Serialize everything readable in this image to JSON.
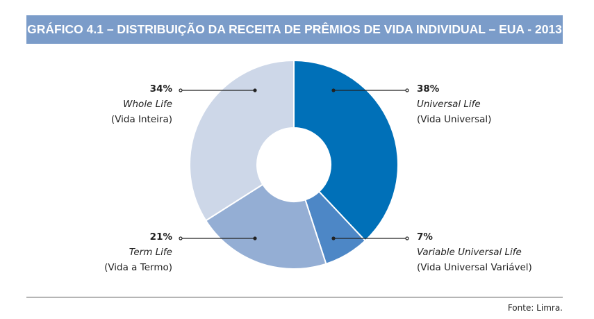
{
  "title": "GRÁFICO 4.1 – DISTRIBUIÇÃO DA RECEITA DE PRÊMIOS DE VIDA INDIVIDUAL – EUA - 2013",
  "source": "Fonte: Limra.",
  "chart_data": {
    "type": "pie",
    "donut": true,
    "title": "GRÁFICO 4.1 – DISTRIBUIÇÃO DA RECEITA DE PRÊMIOS DE VIDA INDIVIDUAL – EUA - 2013",
    "slices": [
      {
        "pct_label": "38%",
        "name": "Universal Life",
        "translation": "(Vida Universal)",
        "value": 38,
        "color": "#0070b8"
      },
      {
        "pct_label": "7%",
        "name": "Variable Universal Life",
        "translation": "(Vida Universal Variável)",
        "value": 7,
        "color": "#4d87c6"
      },
      {
        "pct_label": "21%",
        "name": "Term Life",
        "translation": "(Vida a Termo)",
        "value": 21,
        "color": "#94aed4"
      },
      {
        "pct_label": "34%",
        "name": "Whole Life",
        "translation": "(Vida Inteira)",
        "value": 34,
        "color": "#cdd7e8"
      }
    ]
  }
}
